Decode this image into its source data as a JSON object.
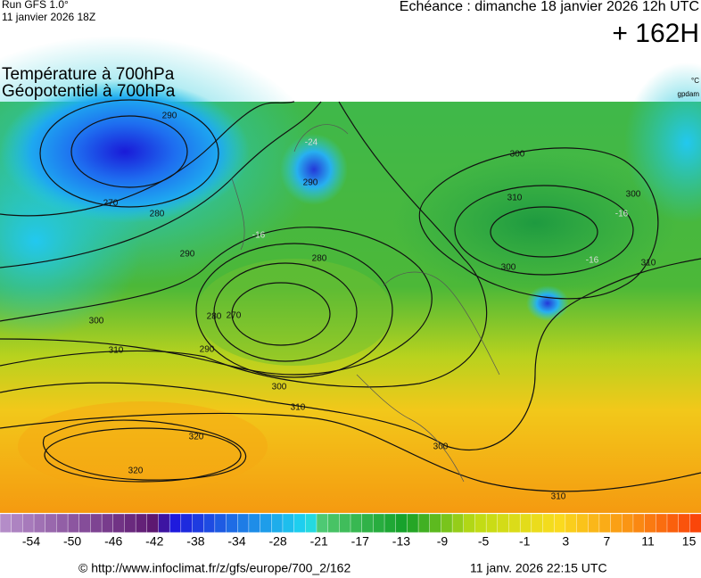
{
  "header": {
    "run": "Run GFS 1.0°",
    "run_date": "11 janvier 2026 18Z",
    "valid": "Echéance : dimanche 18 janvier 2026 12h UTC",
    "lead": "+ 162H",
    "title_line1": "Température à 700hPa",
    "title_line2": "Géopotentiel à 700hPa",
    "unit_temp": "°C",
    "unit_geo": "gpdam"
  },
  "map": {
    "contour_labels": [
      "290",
      "280",
      "270",
      "280",
      "290",
      "300",
      "310",
      "300",
      "310",
      "320",
      "320",
      "300",
      "310",
      "280",
      "300",
      "310",
      "300",
      "290",
      "300",
      "310",
      "270",
      "290",
      "-16",
      "-24",
      "-16",
      "-16"
    ]
  },
  "colorbar": {
    "labels": [
      "-54",
      "-50",
      "-46",
      "-42",
      "-38",
      "-34",
      "-28",
      "-21",
      "-17",
      "-13",
      "-9",
      "-5",
      "-1",
      "3",
      "7",
      "11",
      "15"
    ]
  },
  "footer": {
    "source": "© http://www.infoclimat.fr/z/gfs/europe/700_2/162",
    "timestamp": "11 janv. 2026 22:15 UTC"
  }
}
